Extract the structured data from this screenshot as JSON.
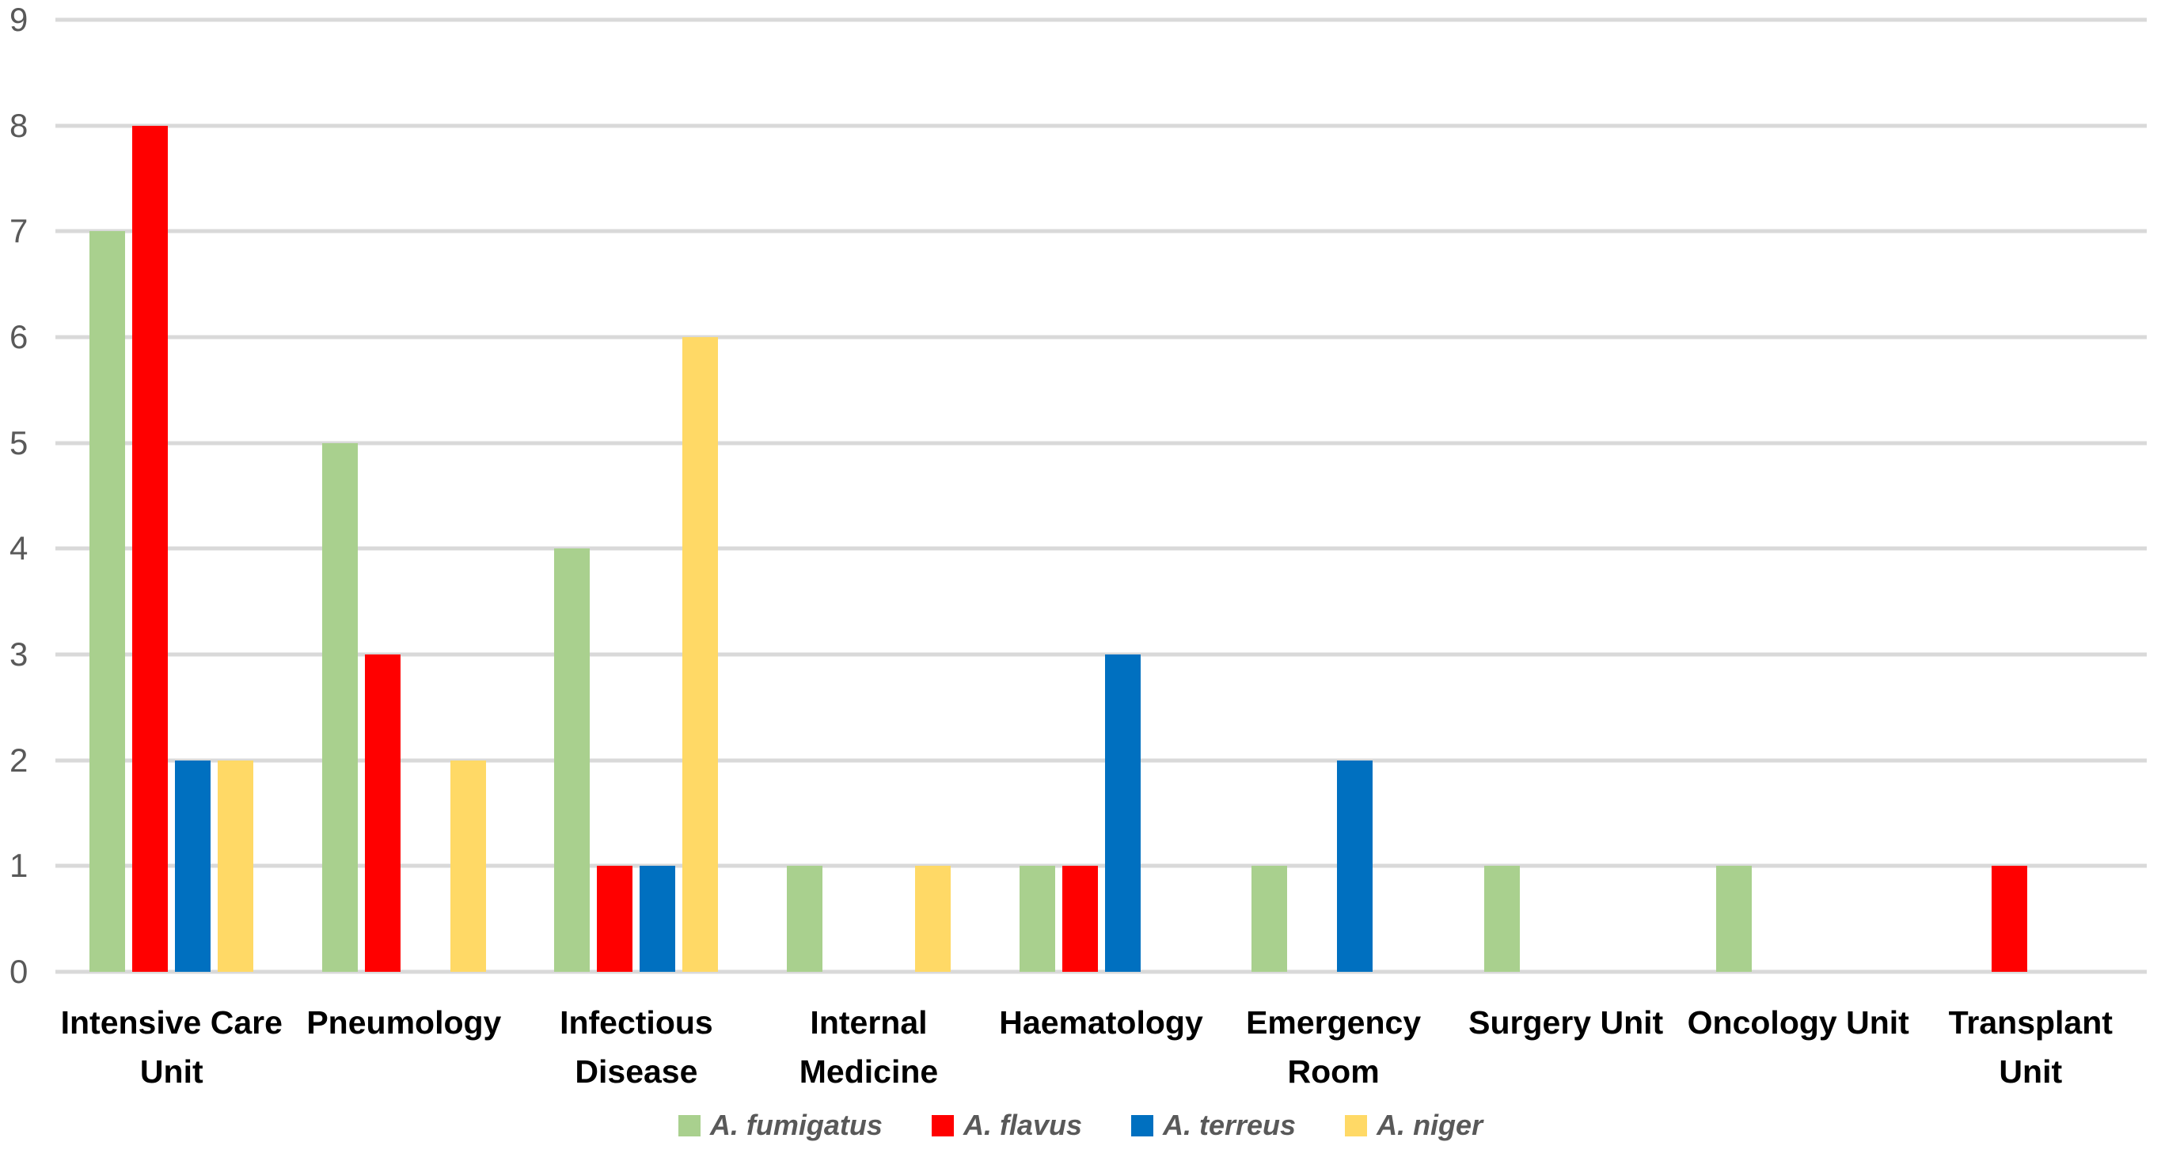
{
  "chart_data": {
    "type": "bar",
    "title": "",
    "xlabel": "",
    "ylabel": "",
    "ylim": [
      0,
      9
    ],
    "ytick_step": 1,
    "yticks": [
      0,
      1,
      2,
      3,
      4,
      5,
      6,
      7,
      8,
      9
    ],
    "grid": true,
    "legend_position": "bottom-center",
    "categories": [
      "Intensive Care\nUnit",
      "Pneumology",
      "Infectious\nDisease",
      "Internal\nMedicine",
      "Haematology",
      "Emergency\nRoom",
      "Surgery Unit",
      "Oncology Unit",
      "Transplant\nUnit"
    ],
    "series": [
      {
        "name": "A. fumigatus",
        "color": "#A9D08E",
        "values": [
          7,
          5,
          4,
          1,
          1,
          1,
          1,
          1,
          0
        ]
      },
      {
        "name": "A. flavus",
        "color": "#FF0000",
        "values": [
          8,
          3,
          1,
          0,
          1,
          0,
          0,
          0,
          1
        ]
      },
      {
        "name": "A. terreus",
        "color": "#0070C0",
        "values": [
          2,
          0,
          1,
          0,
          3,
          2,
          0,
          0,
          0
        ]
      },
      {
        "name": "A. niger",
        "color": "#FFD966",
        "values": [
          2,
          2,
          6,
          1,
          0,
          0,
          0,
          0,
          0
        ]
      }
    ],
    "colors": {
      "gridline": "#D9D9D9",
      "y_tick_text": "#595959",
      "x_label_text": "#000000",
      "legend_text": "#595959",
      "background": "#FFFFFF"
    }
  }
}
